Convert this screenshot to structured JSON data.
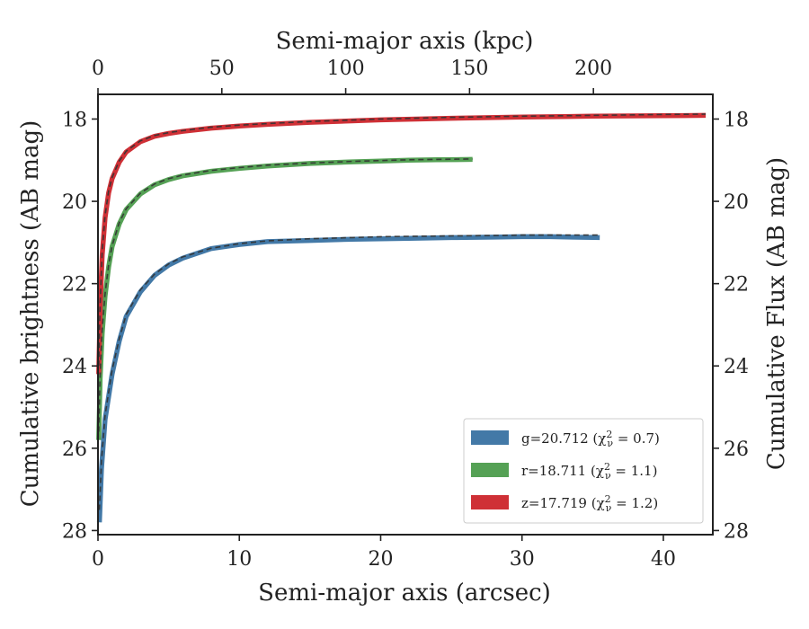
{
  "chart_data": {
    "type": "line",
    "xlabel": "Semi-major axis (arcsec)",
    "x2label": "Semi-major axis (kpc)",
    "ylabel": "Cumulative brightness (AB mag)",
    "y2label": "Cumulative Flux (AB mag)",
    "xlim": [
      0,
      43.5
    ],
    "ylim": [
      28.1,
      17.4
    ],
    "x2lim": [
      0,
      248.2
    ],
    "x_ticks": [
      0,
      10,
      20,
      30,
      40
    ],
    "x_tick_labels": [
      "0",
      "10",
      "20",
      "30",
      "40"
    ],
    "x2_ticks": [
      0,
      50,
      100,
      150,
      200
    ],
    "x2_tick_labels": [
      "0",
      "50",
      "100",
      "150",
      "200"
    ],
    "y_ticks": [
      18,
      20,
      22,
      24,
      26,
      28
    ],
    "y_tick_labels": [
      "18",
      "20",
      "22",
      "24",
      "26",
      "28"
    ],
    "grid": false,
    "legend_position": "lower-right",
    "series": [
      {
        "name": "g=20.712 (χ²ᵥ = 0.7)",
        "legend_label": "g=20.712 (χ",
        "legend_sub": "ν",
        "legend_sup": "2",
        "legend_value": " = 0.7)",
        "color": "#4379a7",
        "x": [
          0.1,
          0.25,
          0.5,
          1,
          1.5,
          2,
          3,
          4,
          5,
          6,
          8,
          10,
          12,
          15,
          18,
          20,
          22,
          25,
          28,
          30,
          32,
          35.5
        ],
        "y": [
          27.8,
          26.5,
          25.3,
          24.2,
          23.4,
          22.8,
          22.2,
          21.8,
          21.55,
          21.38,
          21.15,
          21.05,
          20.98,
          20.95,
          20.92,
          20.91,
          20.9,
          20.88,
          20.87,
          20.86,
          20.86,
          20.88
        ],
        "model": [
          27.5,
          26.3,
          25.2,
          24.1,
          23.35,
          22.75,
          22.15,
          21.77,
          21.52,
          21.35,
          21.14,
          21.03,
          20.96,
          20.91,
          20.88,
          20.86,
          20.85,
          20.84,
          20.83,
          20.82,
          20.82,
          20.82
        ]
      },
      {
        "name": "r=18.711 (χ²ᵥ = 1.1)",
        "legend_label": "r=18.711 (χ",
        "legend_sub": "ν",
        "legend_sup": "2",
        "legend_value": " = 1.1)",
        "color": "#55a155",
        "x": [
          0.05,
          0.15,
          0.3,
          0.5,
          0.75,
          1,
          1.5,
          2,
          3,
          4,
          5,
          6,
          8,
          10,
          12,
          15,
          18,
          20,
          22,
          24,
          26.5
        ],
        "y": [
          25.8,
          24.3,
          23.2,
          22.3,
          21.6,
          21.1,
          20.55,
          20.2,
          19.82,
          19.6,
          19.47,
          19.38,
          19.27,
          19.2,
          19.14,
          19.08,
          19.04,
          19.02,
          19.0,
          18.99,
          18.98
        ],
        "model": [
          25.6,
          24.2,
          23.1,
          22.25,
          21.55,
          21.08,
          20.52,
          20.18,
          19.8,
          19.58,
          19.45,
          19.36,
          19.25,
          19.18,
          19.12,
          19.07,
          19.03,
          19.01,
          18.99,
          18.98,
          18.97
        ]
      },
      {
        "name": "z=17.719 (χ²ᵥ = 1.2)",
        "legend_label": "z=17.719 (χ",
        "legend_sub": "ν",
        "legend_sup": "2",
        "legend_value": " = 1.2)",
        "color": "#cf3036",
        "x": [
          0.05,
          0.15,
          0.3,
          0.5,
          0.75,
          1,
          1.5,
          2,
          3,
          4,
          5,
          6,
          8,
          10,
          12,
          15,
          20,
          25,
          30,
          35,
          40,
          43
        ],
        "y": [
          24.2,
          22.6,
          21.3,
          20.4,
          19.8,
          19.45,
          19.05,
          18.8,
          18.55,
          18.42,
          18.35,
          18.3,
          18.22,
          18.17,
          18.13,
          18.08,
          18.02,
          17.98,
          17.95,
          17.93,
          17.92,
          17.91
        ],
        "model": [
          24.0,
          22.5,
          21.2,
          20.35,
          19.75,
          19.42,
          19.02,
          18.78,
          18.53,
          18.4,
          18.33,
          18.28,
          18.2,
          18.15,
          18.11,
          18.06,
          18.0,
          17.96,
          17.93,
          17.91,
          17.89,
          17.88
        ]
      }
    ]
  }
}
